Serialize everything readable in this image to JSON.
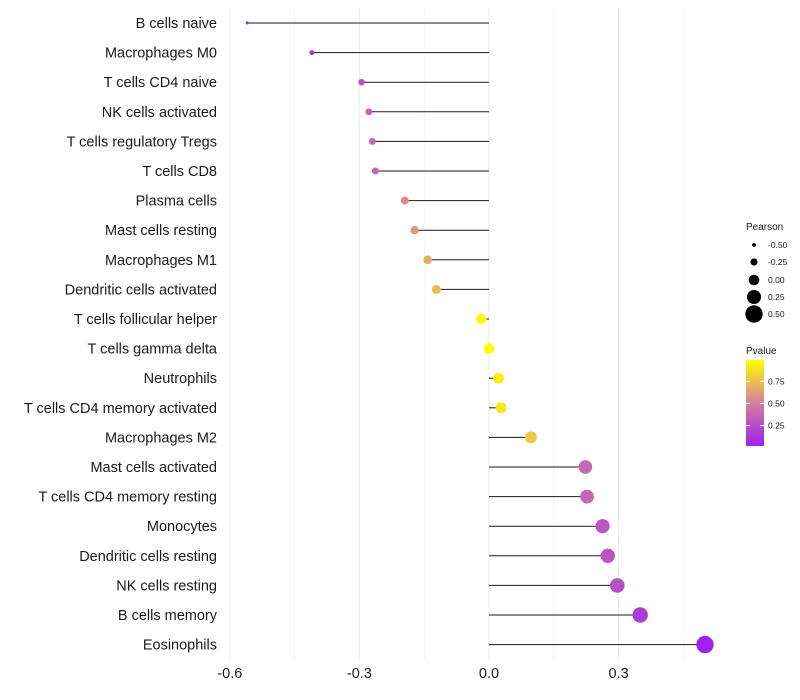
{
  "chart_data": {
    "type": "lollipop",
    "title": "",
    "xlabel": "",
    "ylabel": "",
    "xlim": [
      -0.61,
      0.52
    ],
    "x_ticks": [
      -0.6,
      -0.3,
      0.0,
      0.3
    ],
    "x_tick_labels": [
      "-0.6",
      "-0.3",
      "0.0",
      "0.3"
    ],
    "baseline": 0,
    "categories": [
      "B cells naive",
      "Macrophages M0",
      "T cells CD4 naive",
      "NK cells activated",
      "T cells regulatory  Tregs",
      "T cells CD8",
      "Plasma cells",
      "Mast cells resting",
      "Macrophages M1",
      "Dendritic cells activated",
      "T cells follicular helper",
      "T cells gamma delta",
      "Neutrophils",
      "T cells CD4 memory activated",
      "Macrophages M2",
      "Mast cells activated",
      "T cells CD4 memory resting",
      "Monocytes",
      "Dendritic cells resting",
      "NK cells resting",
      "B cells memory",
      "Eosinophils"
    ],
    "pearson": [
      -0.56,
      -0.41,
      -0.295,
      -0.278,
      -0.27,
      -0.263,
      -0.195,
      -0.172,
      -0.142,
      -0.122,
      -0.018,
      0.0,
      0.022,
      0.028,
      0.097,
      0.223,
      0.227,
      0.263,
      0.275,
      0.297,
      0.35,
      0.5
    ],
    "pvalue": [
      0.05,
      0.12,
      0.3,
      0.35,
      0.37,
      0.38,
      0.55,
      0.6,
      0.68,
      0.74,
      0.97,
      0.99,
      0.93,
      0.9,
      0.78,
      0.38,
      0.37,
      0.3,
      0.28,
      0.25,
      0.15,
      0.02
    ],
    "legend_size": {
      "title": "Pearson",
      "labels": [
        "-0.50",
        "-0.25",
        "0.00",
        "0.25",
        "0.50"
      ],
      "values": [
        -0.5,
        -0.25,
        0.0,
        0.25,
        0.5
      ]
    },
    "legend_color": {
      "title": "Pvalue",
      "labels": [
        "0.75",
        "0.50",
        "0.25"
      ],
      "values": [
        0.75,
        0.5,
        0.25
      ],
      "range": [
        0.02,
        0.99
      ],
      "colors": {
        "low": "#a020f0",
        "mid": "#d3809c",
        "high": "#ffff00"
      }
    }
  }
}
